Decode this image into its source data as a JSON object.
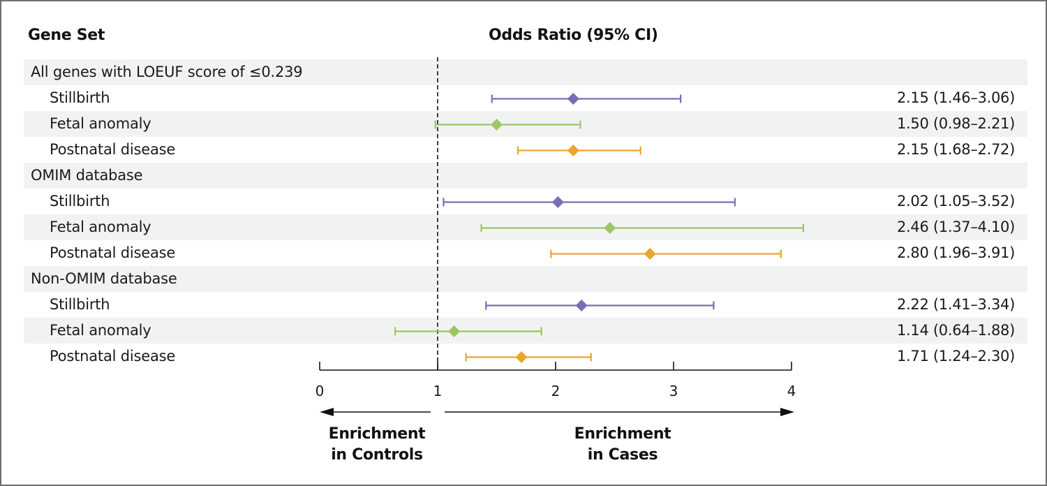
{
  "header": {
    "gene_set": "Gene Set",
    "odds_ratio": "Odds Ratio (95% CI)"
  },
  "rows": [
    {
      "type": "group",
      "label": "All genes with LOEUF score of ≤0.239"
    },
    {
      "type": "sub",
      "label": "Stillbirth",
      "ci_text": "2.15 (1.46–3.06)"
    },
    {
      "type": "sub",
      "label": "Fetal anomaly",
      "ci_text": "1.50 (0.98–2.21)"
    },
    {
      "type": "sub",
      "label": "Postnatal disease",
      "ci_text": "2.15 (1.68–2.72)"
    },
    {
      "type": "group",
      "label": "OMIM database"
    },
    {
      "type": "sub",
      "label": "Stillbirth",
      "ci_text": "2.02 (1.05–3.52)"
    },
    {
      "type": "sub",
      "label": "Fetal anomaly",
      "ci_text": "2.46 (1.37–4.10)"
    },
    {
      "type": "sub",
      "label": "Postnatal disease",
      "ci_text": "2.80 (1.96–3.91)"
    },
    {
      "type": "group",
      "label": "Non-OMIM database"
    },
    {
      "type": "sub",
      "label": "Stillbirth",
      "ci_text": "2.22 (1.41–3.34)"
    },
    {
      "type": "sub",
      "label": "Fetal anomaly",
      "ci_text": "1.14 (0.64–1.88)"
    },
    {
      "type": "sub",
      "label": "Postnatal disease",
      "ci_text": "1.71 (1.24–2.30)"
    }
  ],
  "annotations": {
    "controls": [
      "Enrichment",
      "in Controls"
    ],
    "cases": [
      "Enrichment",
      "in Cases"
    ]
  },
  "chart_data": {
    "type": "forest",
    "title": "Odds Ratio (95% CI)",
    "xlabel": "",
    "xlim": [
      0,
      4
    ],
    "xticks": [
      0,
      1,
      2,
      3,
      4
    ],
    "reference_line": 1,
    "series_colors": {
      "Stillbirth": "#7b6cb3",
      "Fetal anomaly": "#9dc665",
      "Postnatal disease": "#eaa42f"
    },
    "groups": [
      {
        "name": "All genes with LOEUF score of ≤0.239",
        "items": [
          {
            "outcome": "Stillbirth",
            "or": 2.15,
            "lo": 1.46,
            "hi": 3.06
          },
          {
            "outcome": "Fetal anomaly",
            "or": 1.5,
            "lo": 0.98,
            "hi": 2.21
          },
          {
            "outcome": "Postnatal disease",
            "or": 2.15,
            "lo": 1.68,
            "hi": 2.72
          }
        ]
      },
      {
        "name": "OMIM database",
        "items": [
          {
            "outcome": "Stillbirth",
            "or": 2.02,
            "lo": 1.05,
            "hi": 3.52
          },
          {
            "outcome": "Fetal anomaly",
            "or": 2.46,
            "lo": 1.37,
            "hi": 4.1
          },
          {
            "outcome": "Postnatal disease",
            "or": 2.8,
            "lo": 1.96,
            "hi": 3.91
          }
        ]
      },
      {
        "name": "Non-OMIM database",
        "items": [
          {
            "outcome": "Stillbirth",
            "or": 2.22,
            "lo": 1.41,
            "hi": 3.34
          },
          {
            "outcome": "Fetal anomaly",
            "or": 1.14,
            "lo": 0.64,
            "hi": 1.88
          },
          {
            "outcome": "Postnatal disease",
            "or": 1.71,
            "lo": 1.24,
            "hi": 2.3
          }
        ]
      }
    ]
  }
}
